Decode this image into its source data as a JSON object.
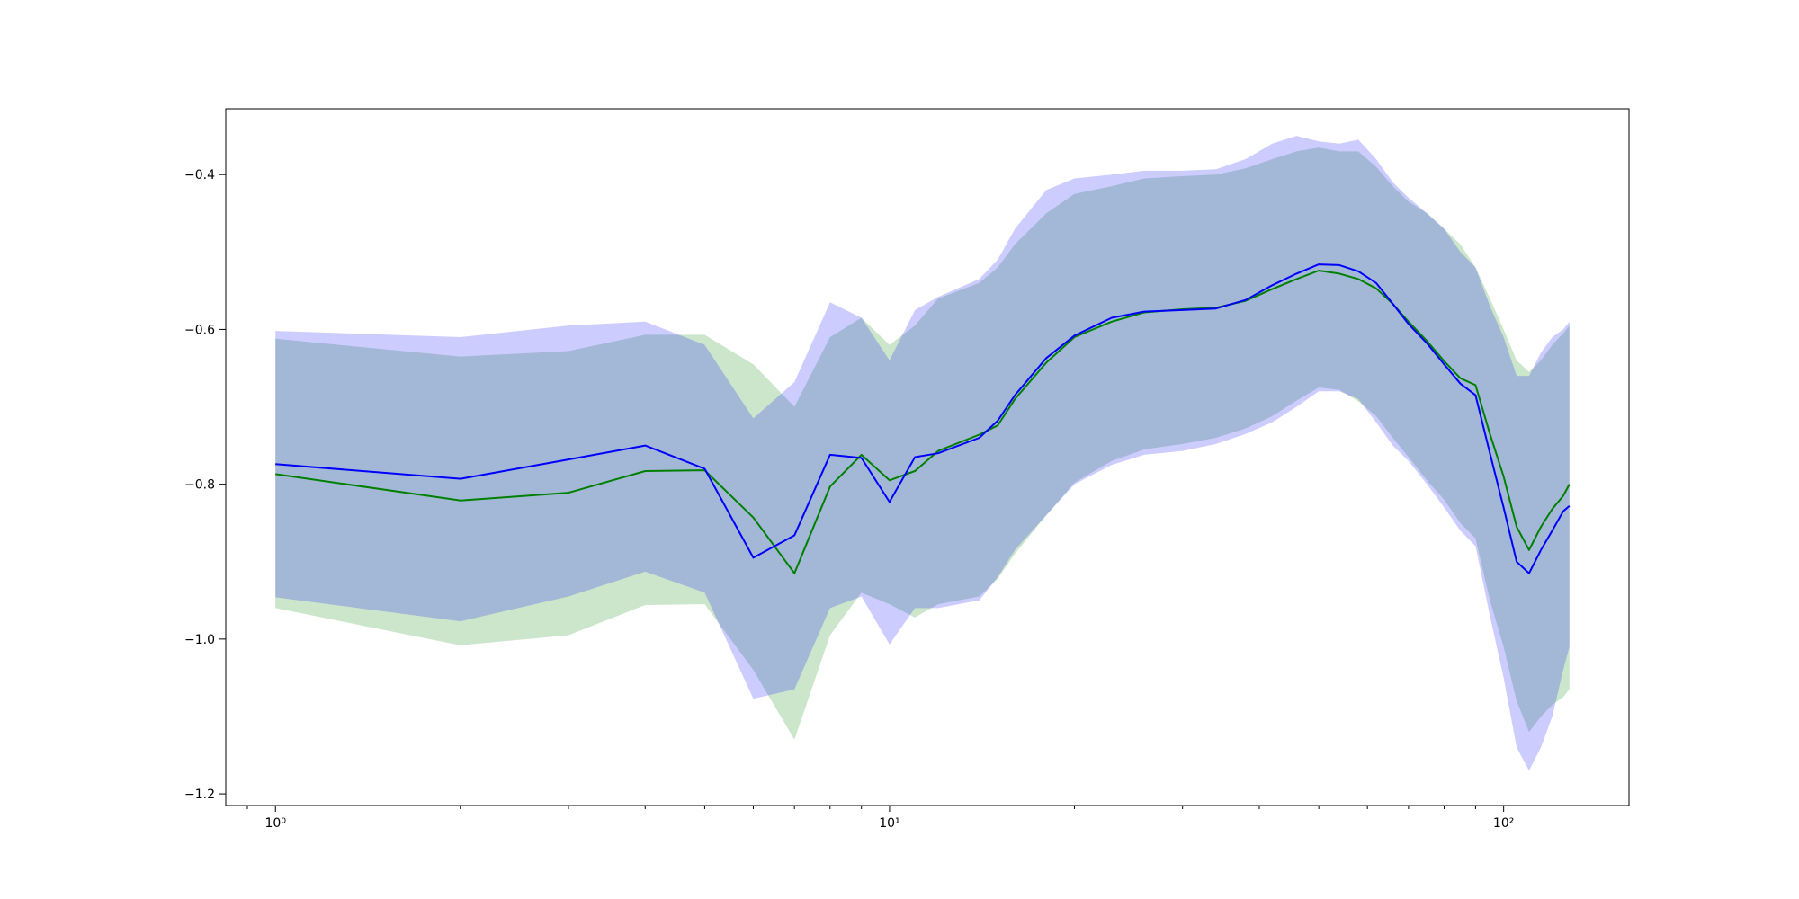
{
  "chart_data": {
    "type": "line",
    "xscale": "log",
    "xlim": [
      0.83,
      160
    ],
    "ylim": [
      -1.215,
      -0.315
    ],
    "grid": false,
    "legend": "none",
    "title": "",
    "xlabel": "",
    "ylabel": "",
    "x_ticks": [
      {
        "value": 1,
        "label": "10⁰"
      },
      {
        "value": 10,
        "label": "10¹"
      },
      {
        "value": 100,
        "label": "10²"
      }
    ],
    "y_ticks": [
      {
        "value": -0.4,
        "label": "−0.4"
      },
      {
        "value": -0.6,
        "label": "−0.6"
      },
      {
        "value": -0.8,
        "label": "−0.8"
      },
      {
        "value": -1.0,
        "label": "−1.0"
      },
      {
        "value": -1.2,
        "label": "−1.2"
      }
    ],
    "series": [
      {
        "color": "#008000",
        "band_color": "#008000",
        "x": [
          1,
          2,
          3,
          4,
          5,
          6,
          7,
          8,
          9,
          10,
          11,
          12,
          14,
          15,
          16,
          18,
          20,
          23,
          26,
          30,
          34,
          38,
          42,
          46,
          50,
          54,
          58,
          62,
          66,
          70,
          75,
          80,
          85,
          90,
          95,
          100,
          105,
          110,
          115,
          120,
          125,
          128
        ],
        "mean": [
          -0.787,
          -0.821,
          -0.811,
          -0.783,
          -0.782,
          -0.843,
          -0.915,
          -0.803,
          -0.762,
          -0.795,
          -0.783,
          -0.757,
          -0.736,
          -0.724,
          -0.69,
          -0.643,
          -0.61,
          -0.59,
          -0.578,
          -0.574,
          -0.572,
          -0.563,
          -0.548,
          -0.535,
          -0.524,
          -0.528,
          -0.535,
          -0.547,
          -0.567,
          -0.59,
          -0.615,
          -0.641,
          -0.663,
          -0.672,
          -0.735,
          -0.79,
          -0.855,
          -0.885,
          -0.855,
          -0.832,
          -0.815,
          -0.8
        ],
        "lower": [
          -0.96,
          -1.008,
          -0.995,
          -0.956,
          -0.955,
          -1.04,
          -1.13,
          -0.995,
          -0.94,
          -0.955,
          -0.972,
          -0.955,
          -0.945,
          -0.922,
          -0.89,
          -0.84,
          -0.798,
          -0.77,
          -0.755,
          -0.748,
          -0.74,
          -0.728,
          -0.712,
          -0.692,
          -0.675,
          -0.678,
          -0.693,
          -0.712,
          -0.74,
          -0.765,
          -0.795,
          -0.82,
          -0.85,
          -0.87,
          -0.95,
          -1.01,
          -1.08,
          -1.12,
          -1.1,
          -1.085,
          -1.075,
          -1.065
        ],
        "upper": [
          -0.612,
          -0.635,
          -0.628,
          -0.607,
          -0.607,
          -0.645,
          -0.7,
          -0.61,
          -0.585,
          -0.62,
          -0.595,
          -0.56,
          -0.54,
          -0.52,
          -0.49,
          -0.45,
          -0.425,
          -0.415,
          -0.405,
          -0.402,
          -0.4,
          -0.392,
          -0.38,
          -0.37,
          -0.365,
          -0.37,
          -0.37,
          -0.39,
          -0.415,
          -0.435,
          -0.45,
          -0.47,
          -0.49,
          -0.52,
          -0.56,
          -0.6,
          -0.64,
          -0.655,
          -0.64,
          -0.62,
          -0.605,
          -0.595
        ]
      },
      {
        "color": "#0000ff",
        "band_color": "#0000ff",
        "x": [
          1,
          2,
          3,
          4,
          5,
          6,
          7,
          8,
          9,
          10,
          11,
          12,
          14,
          15,
          16,
          18,
          20,
          23,
          26,
          30,
          34,
          38,
          42,
          46,
          50,
          54,
          58,
          62,
          66,
          70,
          75,
          80,
          85,
          90,
          95,
          100,
          105,
          110,
          115,
          120,
          125,
          128
        ],
        "mean": [
          -0.774,
          -0.793,
          -0.768,
          -0.75,
          -0.78,
          -0.895,
          -0.866,
          -0.762,
          -0.766,
          -0.823,
          -0.765,
          -0.76,
          -0.74,
          -0.718,
          -0.685,
          -0.637,
          -0.608,
          -0.585,
          -0.577,
          -0.575,
          -0.573,
          -0.562,
          -0.543,
          -0.528,
          -0.516,
          -0.517,
          -0.525,
          -0.54,
          -0.567,
          -0.593,
          -0.618,
          -0.645,
          -0.67,
          -0.685,
          -0.76,
          -0.83,
          -0.9,
          -0.915,
          -0.885,
          -0.86,
          -0.835,
          -0.828
        ],
        "lower": [
          -0.946,
          -0.977,
          -0.945,
          -0.913,
          -0.94,
          -1.077,
          -1.065,
          -0.96,
          -0.945,
          -1.007,
          -0.96,
          -0.96,
          -0.95,
          -0.92,
          -0.885,
          -0.84,
          -0.8,
          -0.775,
          -0.762,
          -0.757,
          -0.748,
          -0.735,
          -0.72,
          -0.7,
          -0.68,
          -0.68,
          -0.69,
          -0.72,
          -0.75,
          -0.77,
          -0.8,
          -0.83,
          -0.86,
          -0.88,
          -0.97,
          -1.05,
          -1.14,
          -1.17,
          -1.14,
          -1.1,
          -1.04,
          -1.01
        ],
        "upper": [
          -0.602,
          -0.61,
          -0.595,
          -0.59,
          -0.62,
          -0.715,
          -0.668,
          -0.565,
          -0.585,
          -0.64,
          -0.575,
          -0.558,
          -0.535,
          -0.51,
          -0.47,
          -0.42,
          -0.405,
          -0.4,
          -0.395,
          -0.395,
          -0.393,
          -0.38,
          -0.36,
          -0.35,
          -0.357,
          -0.36,
          -0.355,
          -0.38,
          -0.41,
          -0.43,
          -0.45,
          -0.47,
          -0.5,
          -0.52,
          -0.57,
          -0.61,
          -0.66,
          -0.66,
          -0.63,
          -0.61,
          -0.6,
          -0.59
        ]
      }
    ]
  }
}
